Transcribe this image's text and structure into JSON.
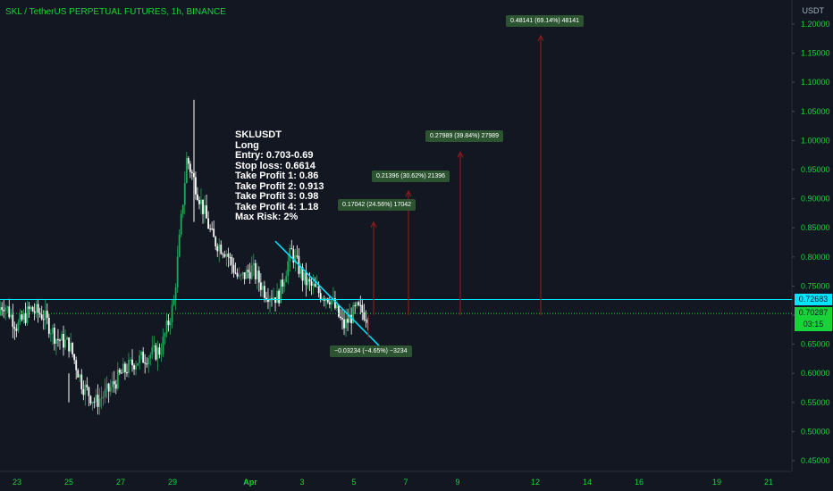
{
  "header": {
    "title": "SKL / TetherUS PERPETUAL FUTURES, 1h, BINANCE"
  },
  "trade_plan": [
    "SKLUSDT",
    "Long",
    "Entry: 0.703-0.69",
    "Stop loss: 0.6614",
    "Take Profit 1: 0.86",
    "Take Profit 2: 0.913",
    "Take Profit 3: 0.98",
    "Take Profit 4: 1.18",
    "Max Risk: 2%"
  ],
  "price_axis": {
    "unit": "USDT",
    "ticks": [
      "1.20000",
      "1.15000",
      "1.10000",
      "1.05000",
      "1.00000",
      "0.95000",
      "0.90000",
      "0.85000",
      "0.80000",
      "0.75000",
      "0.70000",
      "0.65000",
      "0.60000",
      "0.55000",
      "0.50000",
      "0.45000"
    ]
  },
  "time_axis": {
    "ticks": [
      "23",
      "25",
      "27",
      "29",
      "Apr",
      "3",
      "5",
      "7",
      "9",
      "12",
      "14",
      "16",
      "19",
      "21"
    ]
  },
  "current_price": {
    "level": "0.72683",
    "last": "0.70287",
    "countdown": "03:15"
  },
  "annotations": [
    {
      "id": "sl",
      "text": "−0.03234 (−4.65%) −3234"
    },
    {
      "id": "tp1",
      "text": "0.17042 (24.56%) 17042"
    },
    {
      "id": "tp2",
      "text": "0.21396 (30.62%) 21396"
    },
    {
      "id": "tp3",
      "text": "0.27989 (39.84%) 27989"
    },
    {
      "id": "tp4",
      "text": "0.48141 (69.14%) 48141"
    }
  ],
  "colors": {
    "background": "#131722",
    "candle": "#ffffff",
    "candle_up": "#26a65b",
    "text_green": "#19d23a",
    "cyan_line": "#00e5ff",
    "target_arrow": "#8b1a1a",
    "label_bg": "#2c5430"
  },
  "chart_data": {
    "type": "line",
    "title": "SKL / TetherUS PERPETUAL FUTURES, 1h, BINANCE",
    "ylabel": "USDT",
    "ylim": [
      0.44,
      1.24
    ],
    "grid": false,
    "series": [
      {
        "x": [
          "Mar 22",
          "Mar 22.5",
          "Mar 23",
          "Mar 23.5",
          "Mar 24",
          "Mar 24.5",
          "Mar 25",
          "Mar 25.5",
          "Mar 26",
          "Mar 26.5",
          "Mar 27",
          "Mar 27.5",
          "Mar 28",
          "Mar 28.5",
          "Mar 29",
          "Mar 29.3",
          "Mar 29.6",
          "Mar 30",
          "Mar 30.5",
          "Mar 31",
          "Mar 31.5",
          "Apr 1",
          "Apr 1.5",
          "Apr 2",
          "Apr 2.5",
          "Apr 3",
          "Apr 3.5",
          "Apr 4",
          "Apr 4.5",
          "Apr 5"
        ],
        "values": [
          0.7,
          0.72,
          0.68,
          0.71,
          0.7,
          0.66,
          0.65,
          0.58,
          0.55,
          0.57,
          0.6,
          0.62,
          0.63,
          0.64,
          0.72,
          0.97,
          0.9,
          0.83,
          0.81,
          0.76,
          0.78,
          0.74,
          0.73,
          0.81,
          0.76,
          0.74,
          0.73,
          0.68,
          0.71,
          0.7
        ]
      }
    ],
    "price_levels": [
      {
        "name": "0.72683",
        "y": 0.72683
      },
      {
        "name": "0.70287",
        "y": 0.70287
      }
    ],
    "targets": [
      {
        "x": "Apr 5.6",
        "y": 0.86
      },
      {
        "x": "Apr 6.9",
        "y": 0.913
      },
      {
        "x": "Apr 9",
        "y": 0.98
      },
      {
        "x": "Apr 12",
        "y": 1.18
      }
    ],
    "stop": {
      "x": "Apr 5.5",
      "y": 0.6614
    }
  }
}
